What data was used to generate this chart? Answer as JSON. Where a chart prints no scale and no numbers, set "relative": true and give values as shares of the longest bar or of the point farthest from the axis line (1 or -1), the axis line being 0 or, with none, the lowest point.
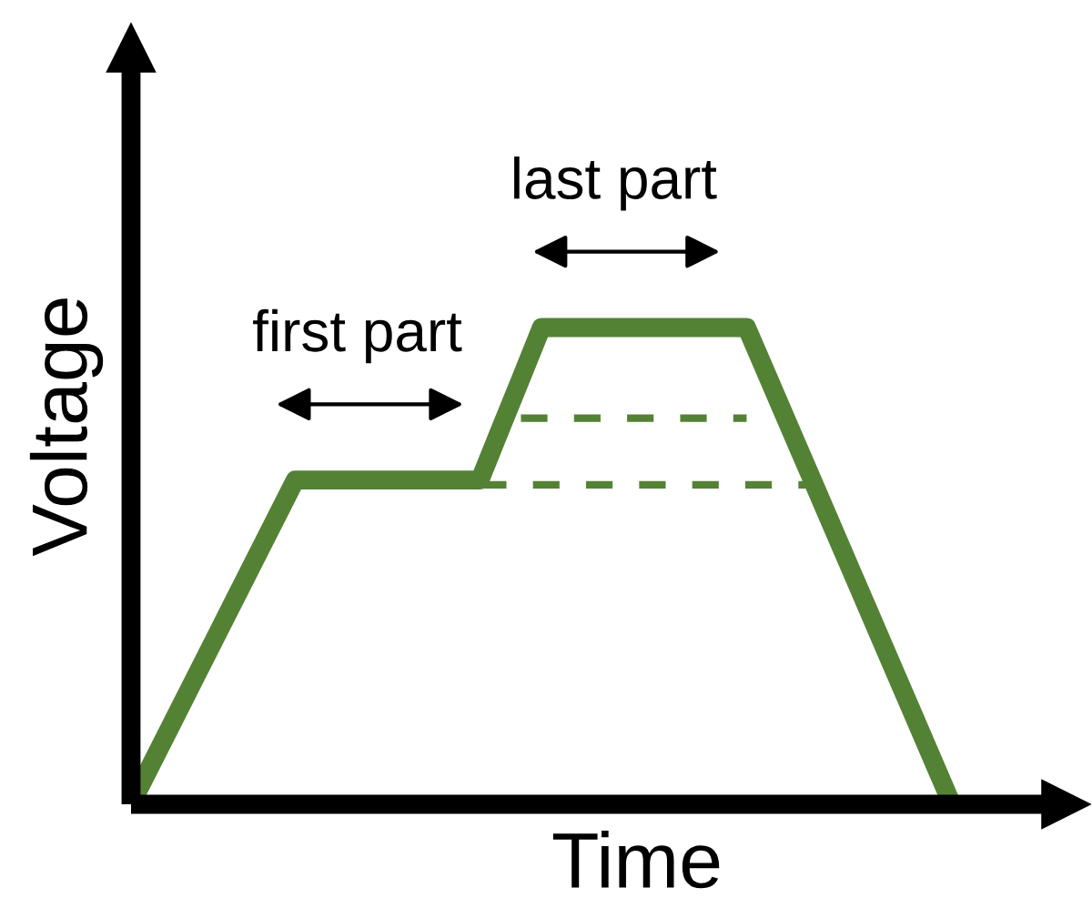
{
  "chart_data": {
    "type": "line",
    "relative": true,
    "xlabel": "Time",
    "ylabel": "Voltage",
    "categories": [
      null,
      null,
      null,
      null,
      null,
      null,
      null,
      null,
      null,
      null,
      null,
      null,
      null,
      null,
      null,
      null,
      null,
      null,
      null,
      null,
      null,
      null,
      null,
      null,
      null,
      null,
      null,
      null,
      null,
      null,
      null,
      null,
      null,
      null,
      null,
      null,
      null,
      null,
      null,
      null,
      null
    ],
    "series": [
      {
        "color": "#548235",
        "line_style": "solid",
        "values": [
          0,
          0.085,
          0.17,
          0.255,
          0.34,
          0.425,
          0.51,
          0.595,
          0.68,
          0.68,
          0.68,
          0.68,
          0.68,
          0.68,
          0.68,
          0.68,
          0.68,
          0.68,
          0.787,
          0.893,
          1,
          1,
          1,
          1,
          1,
          1,
          1,
          1,
          1,
          1,
          1,
          0.9,
          0.8,
          0.7,
          0.6,
          0.5,
          0.4,
          0.3,
          0.2,
          0.1,
          0
        ]
      },
      {
        "color": "#548235",
        "line_style": "dashed",
        "values": [
          null,
          null,
          null,
          null,
          null,
          null,
          null,
          null,
          null,
          null,
          null,
          null,
          null,
          null,
          null,
          null,
          null,
          null,
          null,
          0.81,
          0.81,
          0.81,
          0.81,
          0.81,
          0.81,
          0.81,
          0.81,
          0.81,
          0.81,
          0.81,
          0.81,
          null,
          null,
          null,
          null,
          null,
          null,
          null,
          null,
          null,
          null
        ]
      },
      {
        "color": "#548235",
        "line_style": "dashed",
        "values": [
          null,
          null,
          null,
          null,
          null,
          null,
          null,
          null,
          null,
          null,
          null,
          null,
          null,
          null,
          null,
          null,
          null,
          0.67,
          0.67,
          0.67,
          0.67,
          0.67,
          0.67,
          0.67,
          0.67,
          0.67,
          0.67,
          0.67,
          0.67,
          0.67,
          0.67,
          0.67,
          0.67,
          0.67,
          null,
          null,
          null,
          null,
          null,
          null,
          null
        ]
      }
    ],
    "annotations": [
      "first part",
      "last part"
    ]
  }
}
